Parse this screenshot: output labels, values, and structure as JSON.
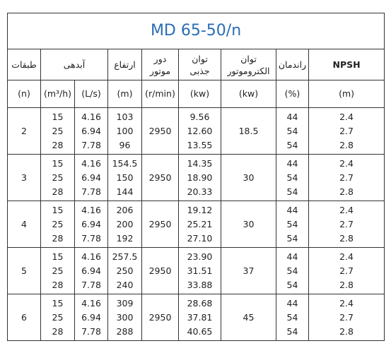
{
  "title": "MD  65-50/n",
  "headers": [
    [
      "طبقات"
    ],
    [
      "آبدهی"
    ],
    [
      "ارتفاع"
    ],
    [
      "دور",
      "موتور"
    ],
    [
      "توان",
      "جذبی"
    ],
    [
      "توان",
      "الکتروموتور"
    ],
    [
      "راندمان"
    ],
    [
      "NPSH"
    ]
  ],
  "units": [
    "(n)",
    "(m³/h)",
    "(L/s)",
    "(m)",
    "(r/min)",
    "(kw)",
    "(kw)",
    "(%)",
    "(m)"
  ],
  "groups": [
    {
      "stages": "2",
      "speed": "2950",
      "motor": "18.5",
      "rows": [
        [
          "15",
          "4.16",
          "103",
          "9.56",
          "44",
          "2.4"
        ],
        [
          "25",
          "6.94",
          "100",
          "12.60",
          "54",
          "2.7"
        ],
        [
          "28",
          "7.78",
          "96",
          "13.55",
          "54",
          "2.8"
        ]
      ]
    },
    {
      "stages": "3",
      "speed": "2950",
      "motor": "30",
      "rows": [
        [
          "15",
          "4.16",
          "154.5",
          "14.35",
          "44",
          "2.4"
        ],
        [
          "25",
          "6.94",
          "150",
          "18.90",
          "54",
          "2.7"
        ],
        [
          "28",
          "7.78",
          "144",
          "20.33",
          "54",
          "2.8"
        ]
      ]
    },
    {
      "stages": "4",
      "speed": "2950",
      "motor": "30",
      "rows": [
        [
          "15",
          "4.16",
          "206",
          "19.12",
          "44",
          "2.4"
        ],
        [
          "25",
          "6.94",
          "200",
          "25.21",
          "54",
          "2.7"
        ],
        [
          "28",
          "7.78",
          "192",
          "27.10",
          "54",
          "2.8"
        ]
      ]
    },
    {
      "stages": "5",
      "speed": "2950",
      "motor": "37",
      "rows": [
        [
          "15",
          "4.16",
          "257.5",
          "23.90",
          "44",
          "2.4"
        ],
        [
          "25",
          "6.94",
          "250",
          "31.51",
          "54",
          "2.7"
        ],
        [
          "28",
          "7.78",
          "240",
          "33.88",
          "54",
          "2.8"
        ]
      ]
    },
    {
      "stages": "6",
      "speed": "2950",
      "motor": "45",
      "rows": [
        [
          "15",
          "4.16",
          "309",
          "28.68",
          "44",
          "2.4"
        ],
        [
          "25",
          "6.94",
          "300",
          "37.81",
          "54",
          "2.7"
        ],
        [
          "28",
          "7.78",
          "288",
          "40.65",
          "54",
          "2.8"
        ]
      ]
    }
  ]
}
